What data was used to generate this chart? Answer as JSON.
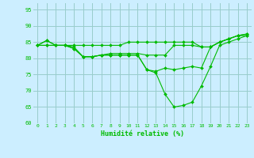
{
  "xlabel": "Humidité relative (%)",
  "background_color": "#cceeff",
  "grid_color": "#99cccc",
  "line_color": "#00bb00",
  "marker_color": "#00bb00",
  "ylim": [
    60,
    97
  ],
  "xlim": [
    -0.5,
    23.5
  ],
  "yticks": [
    60,
    65,
    70,
    75,
    80,
    85,
    90,
    95
  ],
  "xticks": [
    0,
    1,
    2,
    3,
    4,
    5,
    6,
    7,
    8,
    9,
    10,
    11,
    12,
    13,
    14,
    15,
    16,
    17,
    18,
    19,
    20,
    21,
    22,
    23
  ],
  "series": [
    [
      84,
      85.5,
      84,
      84,
      84,
      84,
      84,
      84,
      84,
      84,
      85,
      85,
      85,
      85,
      85,
      85,
      85,
      85,
      83.5,
      83.5,
      85,
      86,
      87,
      87.5
    ],
    [
      84,
      85.5,
      84,
      84,
      83.5,
      80.5,
      80.5,
      81,
      81.5,
      81.5,
      81.5,
      81.5,
      81,
      81,
      81,
      84,
      84,
      84,
      83.5,
      83.5,
      85,
      86,
      87,
      87.5
    ],
    [
      84,
      84,
      84,
      84,
      83,
      80.5,
      80.5,
      81,
      81,
      81,
      81,
      81,
      76.5,
      76,
      77,
      76.5,
      77,
      77.5,
      77,
      83.5,
      85,
      86,
      87,
      87
    ],
    [
      84,
      84,
      84,
      84,
      83,
      80.5,
      80.5,
      81,
      81,
      81,
      81,
      81,
      76.5,
      75.5,
      69,
      65,
      65.5,
      66.5,
      71.5,
      77.5,
      84,
      85,
      86,
      87
    ]
  ]
}
